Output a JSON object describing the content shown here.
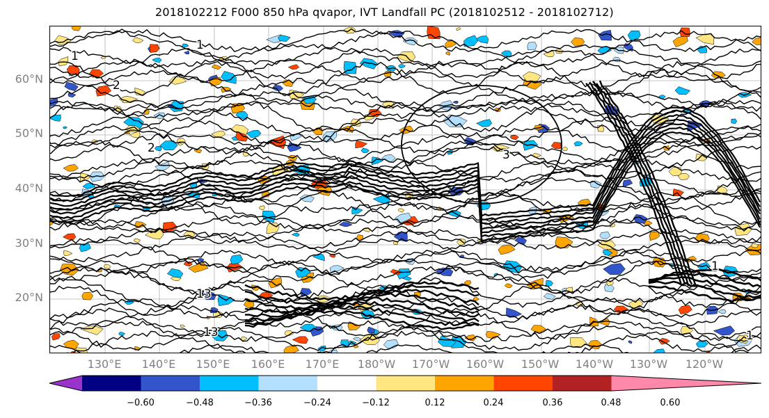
{
  "title": "2018102212 F000 850 hPa qvapor, IVT Landfall PC (2018102512 - 2018102712)",
  "lat_labels": [
    "60°N",
    "50°N",
    "40°N",
    "30°N",
    "20°N"
  ],
  "lon_labels": [
    "130°E",
    "140°E",
    "150°E",
    "160°E",
    "170°E",
    "180°W",
    "170°W",
    "160°W",
    "150°W",
    "140°W",
    "130°W",
    "120°W"
  ],
  "colorbar": {
    "colors": [
      "#9933cc",
      "#000080",
      "#3355cc",
      "#00bfff",
      "#b3e0ff",
      "#ffffff",
      "#ffe680",
      "#ffa500",
      "#ff4500",
      "#b22222",
      "#ff88aa"
    ],
    "tick_labels": [
      "−0.60",
      "−0.48",
      "−0.36",
      "−0.24",
      "−0.12",
      "0.12",
      "0.24",
      "0.36",
      "0.48",
      "0.60"
    ]
  },
  "contour_labels": [
    "1",
    "1",
    "2",
    "2",
    "13",
    "13",
    "1",
    "3",
    "1"
  ]
}
